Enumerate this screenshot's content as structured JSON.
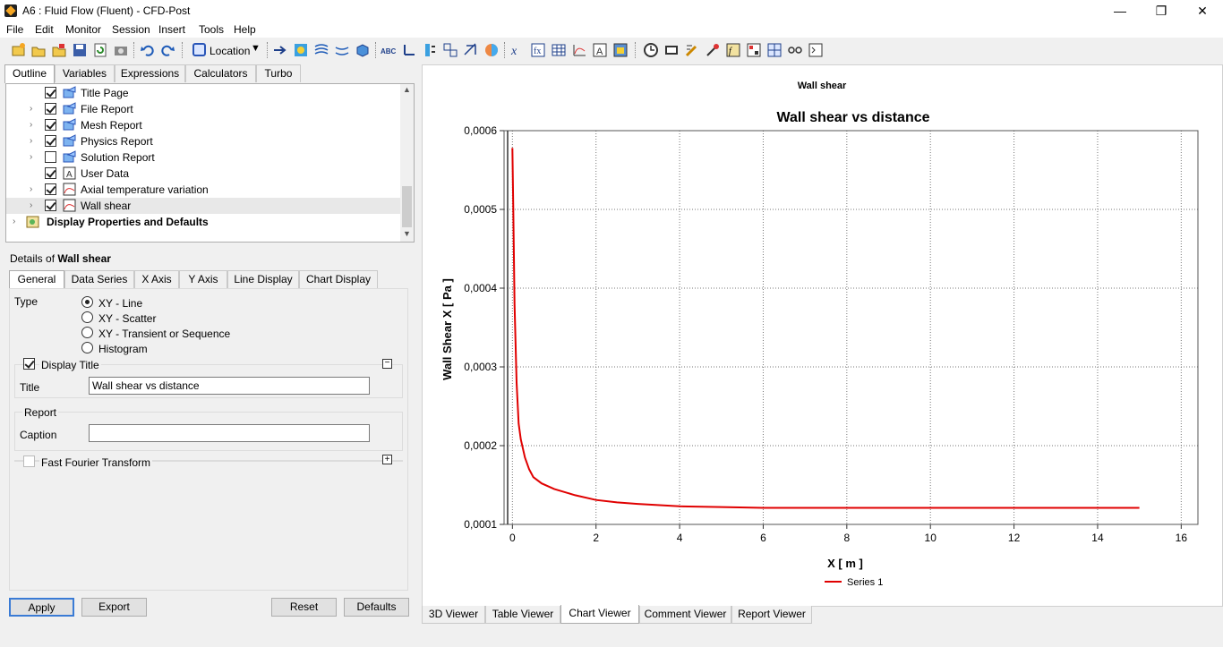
{
  "window": {
    "title": "A6 : Fluid Flow (Fluent) - CFD-Post",
    "minimize": "—",
    "maximize": "❐",
    "close": "✕"
  },
  "menu": [
    "File",
    "Edit",
    "Monitor",
    "Session",
    "Insert",
    "Tools",
    "Help"
  ],
  "toolbar": {
    "location_label": "Location"
  },
  "outline_tabs": [
    "Outline",
    "Variables",
    "Expressions",
    "Calculators",
    "Turbo"
  ],
  "tree": {
    "items": [
      {
        "label": "Title Page",
        "checked": true
      },
      {
        "label": "File Report",
        "checked": true
      },
      {
        "label": "Mesh Report",
        "checked": true
      },
      {
        "label": "Physics Report",
        "checked": true
      },
      {
        "label": "Solution Report",
        "checked": false
      },
      {
        "label": "User Data",
        "checked": true
      },
      {
        "label": "Axial temperature variation",
        "checked": true
      },
      {
        "label": "Wall shear",
        "checked": true
      }
    ],
    "display_props": "Display Properties and Defaults"
  },
  "details": {
    "prefix": "Details of ",
    "object": "Wall shear",
    "tabs": [
      "General",
      "Data Series",
      "X Axis",
      "Y Axis",
      "Line Display",
      "Chart Display"
    ],
    "type_label": "Type",
    "types": [
      "XY - Line",
      "XY - Scatter",
      "XY - Transient or Sequence",
      "Histogram"
    ],
    "selected_type": "XY - Line",
    "display_title_label": "Display Title",
    "title_label": "Title",
    "title_value": "Wall shear vs distance",
    "report_label": "Report",
    "caption_label": "Caption",
    "caption_value": "",
    "fft_label": "Fast Fourier Transform"
  },
  "buttons": {
    "apply": "Apply",
    "export": "Export",
    "reset": "Reset",
    "defaults": "Defaults"
  },
  "viewer_tabs": [
    "3D Viewer",
    "Table Viewer",
    "Chart Viewer",
    "Comment Viewer",
    "Report Viewer"
  ],
  "chart_header": "Wall shear",
  "chart_data": {
    "type": "line",
    "title": "Wall shear vs distance",
    "xlabel": "X [ m ]",
    "ylabel": "Wall Shear X [ Pa ]",
    "xlim": [
      -0.2,
      16.4
    ],
    "ylim": [
      0.0001,
      0.0006
    ],
    "xticks": [
      0,
      2,
      4,
      6,
      8,
      10,
      12,
      14,
      16
    ],
    "xtick_labels": [
      "0",
      "2",
      "4",
      "6",
      "8",
      "10",
      "12",
      "14",
      "16"
    ],
    "yticks": [
      0.0001,
      0.0002,
      0.0003,
      0.0004,
      0.0005,
      0.0006
    ],
    "ytick_labels": [
      "0,0001",
      "0,0002",
      "0,0003",
      "0,0004",
      "0,0005",
      "0,0006"
    ],
    "grid": true,
    "legend_position": "bottom",
    "series": [
      {
        "name": "Series 1",
        "color": "#e00000",
        "x": [
          0.0,
          0.02,
          0.05,
          0.1,
          0.15,
          0.2,
          0.3,
          0.4,
          0.5,
          0.7,
          1.0,
          1.5,
          2.0,
          2.5,
          3.0,
          4.0,
          5.0,
          6.0,
          8.0,
          10.0,
          12.0,
          14.0,
          15.0
        ],
        "y": [
          0.000578,
          0.0005,
          0.00038,
          0.00028,
          0.000228,
          0.000208,
          0.000185,
          0.00017,
          0.00016,
          0.000152,
          0.000145,
          0.000137,
          0.000131,
          0.000128,
          0.000126,
          0.000123,
          0.000122,
          0.000121,
          0.000121,
          0.000121,
          0.000121,
          0.000121,
          0.000121
        ]
      }
    ]
  }
}
